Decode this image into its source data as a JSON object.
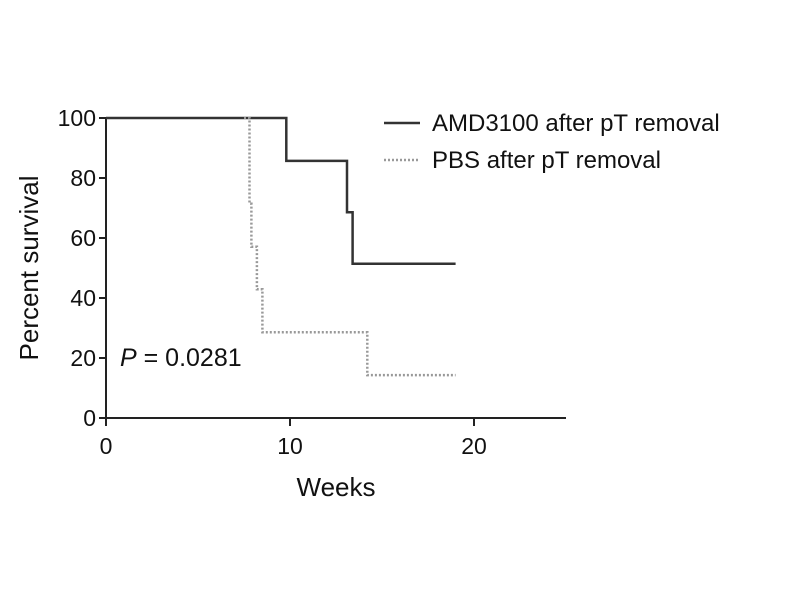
{
  "chart_data": {
    "type": "line",
    "title": "",
    "xlabel": "Weeks",
    "ylabel": "Percent survival",
    "xlim": [
      0,
      25
    ],
    "ylim": [
      0,
      100
    ],
    "xticks": [
      0,
      10,
      20
    ],
    "yticks": [
      0,
      20,
      40,
      60,
      80,
      100
    ],
    "grid": false,
    "legend_position": "top-right",
    "step": true,
    "series": [
      {
        "name": "AMD3100 after pT removal",
        "style": "solid",
        "color": "#333333",
        "points": [
          [
            0,
            100
          ],
          [
            9.8,
            100
          ],
          [
            9.8,
            85.7
          ],
          [
            13.1,
            85.7
          ],
          [
            13.1,
            68.6
          ],
          [
            13.4,
            68.6
          ],
          [
            13.4,
            51.4
          ],
          [
            19,
            51.4
          ]
        ]
      },
      {
        "name": "PBS after pT removal",
        "style": "dotted",
        "color": "#999999",
        "points": [
          [
            7.5,
            100
          ],
          [
            7.8,
            100
          ],
          [
            7.8,
            71.4
          ],
          [
            7.9,
            71.4
          ],
          [
            7.9,
            57.1
          ],
          [
            8.2,
            57.1
          ],
          [
            8.2,
            42.9
          ],
          [
            8.5,
            42.9
          ],
          [
            8.5,
            28.6
          ],
          [
            14.2,
            28.6
          ],
          [
            14.2,
            14.3
          ],
          [
            19,
            14.3
          ]
        ]
      }
    ],
    "annotation": {
      "prefix": "P",
      "text": " = 0.0281"
    }
  }
}
